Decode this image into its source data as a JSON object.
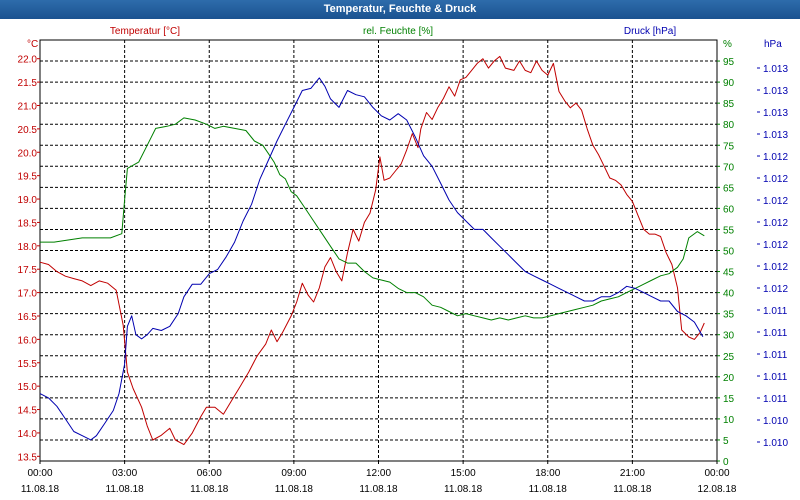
{
  "window": {
    "title": "Temperatur, Feuchte & Druck"
  },
  "colors": {
    "temperature": "#c00000",
    "humidity": "#008000",
    "pressure": "#0000b0",
    "grid": "#000000",
    "title_bar": "#1f5a96"
  },
  "chart_data": {
    "type": "line",
    "title": "Temperatur, Feuchte & Druck",
    "grid": true,
    "x_ticks": [
      {
        "time": "00:00",
        "date": "11.08.18"
      },
      {
        "time": "03:00",
        "date": "11.08.18"
      },
      {
        "time": "06:00",
        "date": "11.08.18"
      },
      {
        "time": "09:00",
        "date": "11.08.18"
      },
      {
        "time": "12:00",
        "date": "11.08.18"
      },
      {
        "time": "15:00",
        "date": "11.08.18"
      },
      {
        "time": "18:00",
        "date": "11.08.18"
      },
      {
        "time": "21:00",
        "date": "11.08.18"
      },
      {
        "time": "00:00",
        "date": "12.08.18"
      }
    ],
    "xlim_hours": [
      0,
      24
    ],
    "axes": {
      "temperature": {
        "label": "Temperatur [°C]",
        "unit": "°C",
        "range": [
          13.4,
          22.4
        ],
        "tick_labels": [
          "22.0",
          "21.5",
          "21.0",
          "20.5",
          "20.0",
          "19.5",
          "19.0",
          "18.5",
          "18.0",
          "17.5",
          "17.0",
          "16.5",
          "16.0",
          "15.5",
          "15.0",
          "14.5",
          "14.0",
          "13.5"
        ],
        "ticks": [
          22.0,
          21.5,
          21.0,
          20.5,
          20.0,
          19.5,
          19.0,
          18.5,
          18.0,
          17.5,
          17.0,
          16.5,
          16.0,
          15.5,
          15.0,
          14.5,
          14.0,
          13.5
        ]
      },
      "humidity": {
        "label": "rel. Feuchte [%]",
        "unit": "%",
        "range": [
          0,
          100
        ],
        "tick_labels": [
          "95",
          "90",
          "85",
          "80",
          "75",
          "70",
          "65",
          "60",
          "55",
          "50",
          "45",
          "40",
          "35",
          "30",
          "25",
          "20",
          "15",
          "10",
          "5",
          "0"
        ],
        "ticks": [
          95,
          90,
          85,
          80,
          75,
          70,
          65,
          60,
          55,
          50,
          45,
          40,
          35,
          30,
          25,
          20,
          15,
          10,
          5,
          0
        ]
      },
      "pressure": {
        "label": "Druck [hPa]",
        "unit": "hPa",
        "range": [
          0,
          100
        ],
        "tick_labels": [
          "1.013",
          "1.013",
          "1.013",
          "1.013",
          "1.012",
          "1.012",
          "1.012",
          "1.012",
          "1.012",
          "1.012",
          "1.012",
          "1.011",
          "1.011",
          "1.011",
          "1.011",
          "1.011",
          "1.010",
          "1.010"
        ]
      }
    },
    "series": [
      {
        "name": "Temperatur [°C]",
        "axis": "temperature",
        "color": "#c00000",
        "points": [
          [
            0,
            17.65
          ],
          [
            0.3,
            17.6
          ],
          [
            0.6,
            17.45
          ],
          [
            0.9,
            17.35
          ],
          [
            1.2,
            17.3
          ],
          [
            1.5,
            17.25
          ],
          [
            1.8,
            17.15
          ],
          [
            2.1,
            17.25
          ],
          [
            2.4,
            17.2
          ],
          [
            2.7,
            17.05
          ],
          [
            2.95,
            16.3
          ],
          [
            3.1,
            15.3
          ],
          [
            3.3,
            14.95
          ],
          [
            3.6,
            14.55
          ],
          [
            3.8,
            14.15
          ],
          [
            4.0,
            13.85
          ],
          [
            4.3,
            13.95
          ],
          [
            4.6,
            14.1
          ],
          [
            4.8,
            13.85
          ],
          [
            5.1,
            13.75
          ],
          [
            5.4,
            14.0
          ],
          [
            5.7,
            14.35
          ],
          [
            5.9,
            14.55
          ],
          [
            6.2,
            14.55
          ],
          [
            6.5,
            14.4
          ],
          [
            6.8,
            14.7
          ],
          [
            7.1,
            15.0
          ],
          [
            7.4,
            15.3
          ],
          [
            7.7,
            15.65
          ],
          [
            8.0,
            15.9
          ],
          [
            8.2,
            16.2
          ],
          [
            8.4,
            15.95
          ],
          [
            8.6,
            16.15
          ],
          [
            8.9,
            16.5
          ],
          [
            9.1,
            16.8
          ],
          [
            9.3,
            17.2
          ],
          [
            9.5,
            16.95
          ],
          [
            9.7,
            16.8
          ],
          [
            9.9,
            17.1
          ],
          [
            10.1,
            17.55
          ],
          [
            10.3,
            17.75
          ],
          [
            10.5,
            17.45
          ],
          [
            10.7,
            17.25
          ],
          [
            10.9,
            17.85
          ],
          [
            11.1,
            18.35
          ],
          [
            11.3,
            18.1
          ],
          [
            11.5,
            18.5
          ],
          [
            11.7,
            18.7
          ],
          [
            11.9,
            19.2
          ],
          [
            12.05,
            19.9
          ],
          [
            12.2,
            19.4
          ],
          [
            12.4,
            19.45
          ],
          [
            12.6,
            19.6
          ],
          [
            12.8,
            19.75
          ],
          [
            13.0,
            20.05
          ],
          [
            13.2,
            20.4
          ],
          [
            13.4,
            20.1
          ],
          [
            13.5,
            20.5
          ],
          [
            13.7,
            20.85
          ],
          [
            13.9,
            20.7
          ],
          [
            14.1,
            20.95
          ],
          [
            14.3,
            21.15
          ],
          [
            14.5,
            21.4
          ],
          [
            14.7,
            21.2
          ],
          [
            14.9,
            21.55
          ],
          [
            15.1,
            21.6
          ],
          [
            15.3,
            21.75
          ],
          [
            15.5,
            21.9
          ],
          [
            15.7,
            22.0
          ],
          [
            15.9,
            21.8
          ],
          [
            16.1,
            21.95
          ],
          [
            16.3,
            22.05
          ],
          [
            16.5,
            21.8
          ],
          [
            16.8,
            21.75
          ],
          [
            17.0,
            21.95
          ],
          [
            17.2,
            21.75
          ],
          [
            17.4,
            21.7
          ],
          [
            17.6,
            21.95
          ],
          [
            17.8,
            21.75
          ],
          [
            18.0,
            21.65
          ],
          [
            18.2,
            21.9
          ],
          [
            18.4,
            21.3
          ],
          [
            18.6,
            21.1
          ],
          [
            18.8,
            20.95
          ],
          [
            19.0,
            21.05
          ],
          [
            19.2,
            20.9
          ],
          [
            19.4,
            20.5
          ],
          [
            19.6,
            20.15
          ],
          [
            19.8,
            19.95
          ],
          [
            20.0,
            19.7
          ],
          [
            20.2,
            19.45
          ],
          [
            20.4,
            19.4
          ],
          [
            20.6,
            19.3
          ],
          [
            20.8,
            19.1
          ],
          [
            21.0,
            18.95
          ],
          [
            21.2,
            18.65
          ],
          [
            21.4,
            18.35
          ],
          [
            21.6,
            18.25
          ],
          [
            21.8,
            18.25
          ],
          [
            22.0,
            18.2
          ],
          [
            22.2,
            17.85
          ],
          [
            22.4,
            17.6
          ],
          [
            22.6,
            17.1
          ],
          [
            22.75,
            16.2
          ],
          [
            23.0,
            16.05
          ],
          [
            23.2,
            16.0
          ],
          [
            23.4,
            16.15
          ],
          [
            23.55,
            16.35
          ]
        ]
      },
      {
        "name": "rel. Feuchte [%]",
        "axis": "humidity",
        "color": "#008000",
        "points": [
          [
            0,
            52
          ],
          [
            0.5,
            52
          ],
          [
            1.0,
            52.5
          ],
          [
            1.5,
            53
          ],
          [
            2.0,
            53
          ],
          [
            2.5,
            53
          ],
          [
            2.9,
            54
          ],
          [
            3.0,
            62
          ],
          [
            3.1,
            69.5
          ],
          [
            3.5,
            71
          ],
          [
            3.8,
            75
          ],
          [
            4.1,
            79
          ],
          [
            4.5,
            79.5
          ],
          [
            4.8,
            80
          ],
          [
            5.1,
            81.5
          ],
          [
            5.5,
            81
          ],
          [
            5.9,
            80
          ],
          [
            6.2,
            79
          ],
          [
            6.5,
            79.5
          ],
          [
            6.9,
            79
          ],
          [
            7.3,
            78.5
          ],
          [
            7.6,
            76
          ],
          [
            7.9,
            75
          ],
          [
            8.1,
            73
          ],
          [
            8.3,
            71
          ],
          [
            8.5,
            68
          ],
          [
            8.7,
            67
          ],
          [
            8.9,
            64
          ],
          [
            9.1,
            63
          ],
          [
            9.4,
            60
          ],
          [
            9.7,
            57
          ],
          [
            10.0,
            54
          ],
          [
            10.3,
            51
          ],
          [
            10.6,
            48
          ],
          [
            10.9,
            47
          ],
          [
            11.2,
            47
          ],
          [
            11.5,
            45
          ],
          [
            11.8,
            43.5
          ],
          [
            12.1,
            43
          ],
          [
            12.4,
            42.5
          ],
          [
            12.7,
            41
          ],
          [
            13.0,
            40
          ],
          [
            13.3,
            40
          ],
          [
            13.6,
            39
          ],
          [
            13.9,
            37
          ],
          [
            14.2,
            36.5
          ],
          [
            14.5,
            35.5
          ],
          [
            14.8,
            34.5
          ],
          [
            15.1,
            35
          ],
          [
            15.4,
            34.5
          ],
          [
            15.7,
            34
          ],
          [
            16.0,
            33.5
          ],
          [
            16.3,
            34
          ],
          [
            16.6,
            33.5
          ],
          [
            16.9,
            34
          ],
          [
            17.2,
            34.5
          ],
          [
            17.5,
            34
          ],
          [
            17.8,
            34
          ],
          [
            18.1,
            34.5
          ],
          [
            18.4,
            35
          ],
          [
            18.7,
            35.5
          ],
          [
            19.0,
            36
          ],
          [
            19.3,
            36.5
          ],
          [
            19.6,
            37
          ],
          [
            19.9,
            38
          ],
          [
            20.2,
            38.5
          ],
          [
            20.5,
            39
          ],
          [
            20.8,
            40
          ],
          [
            21.1,
            41
          ],
          [
            21.4,
            42
          ],
          [
            21.7,
            43
          ],
          [
            22.0,
            44
          ],
          [
            22.3,
            44.5
          ],
          [
            22.6,
            46
          ],
          [
            22.8,
            48
          ],
          [
            23.0,
            53
          ],
          [
            23.3,
            54.5
          ],
          [
            23.55,
            53.5
          ]
        ]
      },
      {
        "name": "Druck [hPa]",
        "axis": "pressure",
        "color": "#0000b0",
        "points": [
          [
            0,
            16
          ],
          [
            0.3,
            15
          ],
          [
            0.6,
            13
          ],
          [
            0.9,
            10
          ],
          [
            1.2,
            7
          ],
          [
            1.5,
            6
          ],
          [
            1.8,
            5
          ],
          [
            2.0,
            6
          ],
          [
            2.3,
            9
          ],
          [
            2.6,
            12
          ],
          [
            2.8,
            16
          ],
          [
            3.0,
            23
          ],
          [
            3.1,
            32
          ],
          [
            3.25,
            34.5
          ],
          [
            3.4,
            30
          ],
          [
            3.6,
            29
          ],
          [
            3.8,
            30
          ],
          [
            4.0,
            31.5
          ],
          [
            4.3,
            31
          ],
          [
            4.6,
            32
          ],
          [
            4.9,
            35
          ],
          [
            5.1,
            39
          ],
          [
            5.4,
            42
          ],
          [
            5.7,
            42
          ],
          [
            6.0,
            44.5
          ],
          [
            6.3,
            45.5
          ],
          [
            6.6,
            48.5
          ],
          [
            6.9,
            52
          ],
          [
            7.2,
            57
          ],
          [
            7.5,
            61
          ],
          [
            7.8,
            67
          ],
          [
            8.1,
            71.5
          ],
          [
            8.4,
            76
          ],
          [
            8.7,
            80
          ],
          [
            9.0,
            84
          ],
          [
            9.3,
            88
          ],
          [
            9.6,
            88.5
          ],
          [
            9.9,
            91
          ],
          [
            10.1,
            89
          ],
          [
            10.3,
            86
          ],
          [
            10.6,
            84
          ],
          [
            10.9,
            88
          ],
          [
            11.2,
            87
          ],
          [
            11.5,
            86.5
          ],
          [
            11.8,
            84
          ],
          [
            12.1,
            82
          ],
          [
            12.4,
            81
          ],
          [
            12.7,
            82.5
          ],
          [
            13.0,
            81
          ],
          [
            13.3,
            77
          ],
          [
            13.6,
            72.5
          ],
          [
            13.9,
            70
          ],
          [
            14.2,
            66
          ],
          [
            14.5,
            62
          ],
          [
            14.8,
            59
          ],
          [
            15.1,
            57
          ],
          [
            15.4,
            55
          ],
          [
            15.7,
            55
          ],
          [
            16.0,
            53
          ],
          [
            16.3,
            51
          ],
          [
            16.6,
            49
          ],
          [
            16.9,
            47
          ],
          [
            17.2,
            45
          ],
          [
            17.5,
            44
          ],
          [
            17.8,
            43
          ],
          [
            18.1,
            42
          ],
          [
            18.4,
            41
          ],
          [
            18.7,
            40
          ],
          [
            19.0,
            39
          ],
          [
            19.3,
            38
          ],
          [
            19.6,
            38
          ],
          [
            19.9,
            39
          ],
          [
            20.2,
            39
          ],
          [
            20.5,
            40
          ],
          [
            20.8,
            41.5
          ],
          [
            21.1,
            41
          ],
          [
            21.4,
            40
          ],
          [
            21.7,
            39
          ],
          [
            22.0,
            38
          ],
          [
            22.3,
            38
          ],
          [
            22.6,
            35.5
          ],
          [
            22.9,
            34.5
          ],
          [
            23.2,
            33
          ],
          [
            23.5,
            29.5
          ]
        ]
      }
    ]
  }
}
